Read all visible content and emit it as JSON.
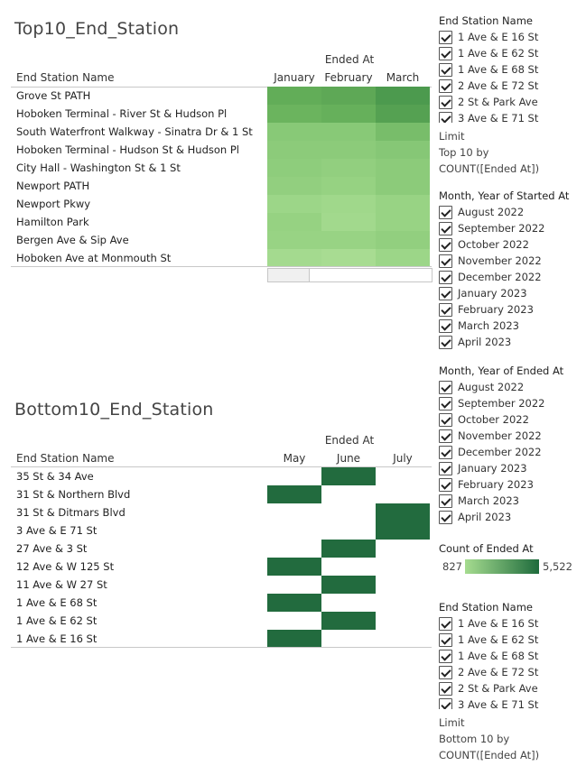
{
  "top": {
    "title": "Top10_End_Station",
    "row_header": "End Station Name",
    "col_group": "Ended At",
    "columns": [
      "January",
      "February",
      "March"
    ],
    "rows": [
      "Grove St PATH",
      "Hoboken Terminal - River St & Hudson Pl",
      "South Waterfront Walkway - Sinatra Dr & 1 St",
      "Hoboken Terminal - Hudson St & Hudson Pl",
      "City Hall - Washington St & 1 St",
      "Newport PATH",
      "Newport Pkwy",
      "Hamilton Park",
      "Bergen Ave & Sip Ave",
      "Hoboken Ave at Monmouth St"
    ],
    "cell_colors": [
      [
        "#62ad58",
        "#5ea856",
        "#4c9a4e"
      ],
      [
        "#6bb45e",
        "#66b05b",
        "#55a152"
      ],
      [
        "#88c977",
        "#88c977",
        "#78bd6a"
      ],
      [
        "#8ccb7a",
        "#8ccb7a",
        "#86c776"
      ],
      [
        "#8ecd7c",
        "#92cf7f",
        "#8ccb7a"
      ],
      [
        "#92cf7f",
        "#96d282",
        "#8ccb7a"
      ],
      [
        "#9cd688",
        "#a0d88b",
        "#98d384"
      ],
      [
        "#96d282",
        "#a2d98d",
        "#98d384"
      ],
      [
        "#98d384",
        "#98d384",
        "#92cf7f"
      ],
      [
        "#a4da8f",
        "#a8dc92",
        "#9cd688"
      ]
    ]
  },
  "bottom": {
    "title": "Bottom10_End_Station",
    "row_header": "End Station Name",
    "col_group": "Ended At",
    "columns": [
      "May",
      "June",
      "July"
    ],
    "rows": [
      "35 St & 34 Ave",
      "31 St & Northern Blvd",
      "31 St & Ditmars Blvd",
      "3 Ave & E 71 St",
      "27 Ave & 3 St",
      "12 Ave & W 125 St",
      "11 Ave & W 27 St",
      "1 Ave & E 68 St",
      "1 Ave & E 62 St",
      "1 Ave & E 16 St"
    ],
    "filled_col_index": [
      1,
      0,
      2,
      2,
      1,
      0,
      1,
      0,
      1,
      0
    ],
    "fill_color": "#226b3e"
  },
  "filters": {
    "end_station_top": {
      "title": "End Station Name",
      "items": [
        "1 Ave & E 16 St",
        "1 Ave & E 62 St",
        "1 Ave & E 68 St",
        "2 Ave & E 72 St",
        "2 St & Park Ave",
        "3 Ave & E 71 St"
      ],
      "limit_label": "Limit",
      "limit_text": "Top 10 by COUNT([Ended At])"
    },
    "started_at": {
      "title": "Month, Year of Started At",
      "items": [
        "August 2022",
        "September 2022",
        "October 2022",
        "November 2022",
        "December 2022",
        "January 2023",
        "February 2023",
        "March 2023",
        "April 2023"
      ]
    },
    "ended_at": {
      "title": "Month, Year of Ended At",
      "items": [
        "August 2022",
        "September 2022",
        "October 2022",
        "November 2022",
        "December 2022",
        "January 2023",
        "February 2023",
        "March 2023",
        "April 2023"
      ]
    },
    "legend": {
      "title": "Count of Ended At",
      "min": "827",
      "max": "5,522",
      "color_low": "#a6dc90",
      "color_high": "#1e6b3c"
    },
    "end_station_bottom": {
      "title": "End Station Name",
      "items": [
        "1 Ave & E 16 St",
        "1 Ave & E 62 St",
        "1 Ave & E 68 St",
        "2 Ave & E 72 St",
        "2 St & Park Ave",
        "3 Ave & E 71 St"
      ],
      "limit_label": "Limit",
      "limit_text": "Bottom 10 by COUNT([Ended At])"
    }
  }
}
